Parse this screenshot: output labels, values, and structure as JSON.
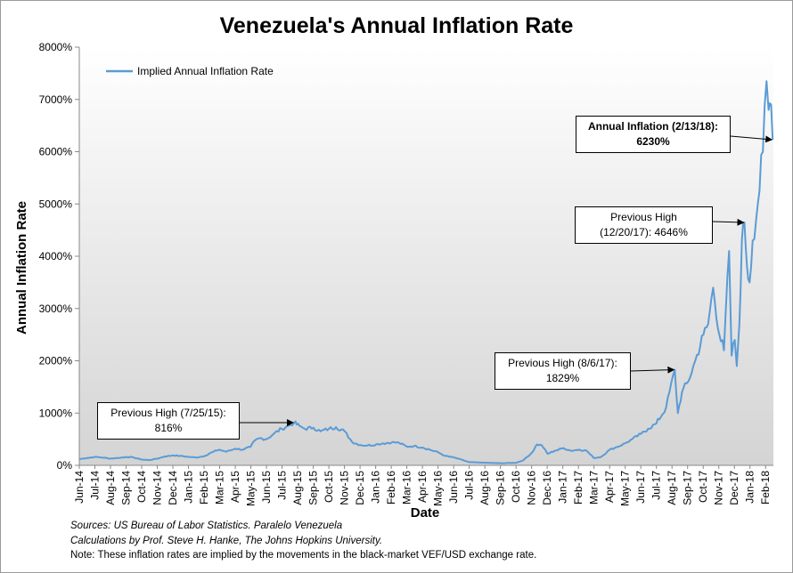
{
  "chart_data": {
    "type": "line",
    "title": "Venezuela's Annual Inflation Rate",
    "xlabel": "Date",
    "ylabel": "Annual Inflation Rate",
    "ylim": [
      0,
      8000
    ],
    "yticks": [
      "0%",
      "1000%",
      "2000%",
      "3000%",
      "4000%",
      "5000%",
      "6000%",
      "7000%",
      "8000%"
    ],
    "xticks": [
      "Jun-14",
      "Jul-14",
      "Aug-14",
      "Sep-14",
      "Oct-14",
      "Nov-14",
      "Dec-14",
      "Jan-15",
      "Feb-15",
      "Mar-15",
      "Apr-15",
      "May-15",
      "Jun-15",
      "Jul-15",
      "Aug-15",
      "Sep-15",
      "Oct-15",
      "Nov-15",
      "Dec-15",
      "Jan-16",
      "Feb-16",
      "Mar-16",
      "Apr-16",
      "May-16",
      "Jun-16",
      "Jul-16",
      "Aug-16",
      "Sep-16",
      "Oct-16",
      "Nov-16",
      "Dec-16",
      "Jan-17",
      "Feb-17",
      "Mar-17",
      "Apr-17",
      "May-17",
      "Jun-17",
      "Jul-17",
      "Aug-17",
      "Sep-17",
      "Oct-17",
      "Nov-17",
      "Dec-17",
      "Jan-18",
      "Feb-18"
    ],
    "grid": false,
    "legend_position": "top-left",
    "series": [
      {
        "name": "Implied Annual Inflation Rate",
        "color": "#5b9bd5",
        "points": [
          [
            "2014-06-01",
            120
          ],
          [
            "2014-06-15",
            140
          ],
          [
            "2014-07-01",
            160
          ],
          [
            "2014-07-15",
            150
          ],
          [
            "2014-08-01",
            130
          ],
          [
            "2014-08-15",
            140
          ],
          [
            "2014-09-01",
            160
          ],
          [
            "2014-09-15",
            150
          ],
          [
            "2014-10-01",
            110
          ],
          [
            "2014-10-15",
            100
          ],
          [
            "2014-11-01",
            130
          ],
          [
            "2014-11-15",
            170
          ],
          [
            "2014-12-01",
            190
          ],
          [
            "2014-12-15",
            180
          ],
          [
            "2015-01-01",
            160
          ],
          [
            "2015-01-15",
            150
          ],
          [
            "2015-02-01",
            180
          ],
          [
            "2015-02-15",
            250
          ],
          [
            "2015-03-01",
            300
          ],
          [
            "2015-03-15",
            260
          ],
          [
            "2015-04-01",
            320
          ],
          [
            "2015-04-15",
            300
          ],
          [
            "2015-05-01",
            350
          ],
          [
            "2015-05-10",
            480
          ],
          [
            "2015-05-20",
            520
          ],
          [
            "2015-06-01",
            500
          ],
          [
            "2015-06-15",
            600
          ],
          [
            "2015-07-01",
            700
          ],
          [
            "2015-07-15",
            760
          ],
          [
            "2015-07-25",
            816
          ],
          [
            "2015-08-05",
            750
          ],
          [
            "2015-08-15",
            700
          ],
          [
            "2015-09-01",
            720
          ],
          [
            "2015-09-15",
            650
          ],
          [
            "2015-10-01",
            700
          ],
          [
            "2015-10-15",
            730
          ],
          [
            "2015-11-01",
            650
          ],
          [
            "2015-11-15",
            450
          ],
          [
            "2015-12-01",
            390
          ],
          [
            "2015-12-15",
            380
          ],
          [
            "2016-01-01",
            400
          ],
          [
            "2016-01-15",
            420
          ],
          [
            "2016-02-01",
            440
          ],
          [
            "2016-02-15",
            430
          ],
          [
            "2016-03-01",
            360
          ],
          [
            "2016-03-15",
            370
          ],
          [
            "2016-04-01",
            340
          ],
          [
            "2016-04-15",
            300
          ],
          [
            "2016-05-01",
            250
          ],
          [
            "2016-05-15",
            180
          ],
          [
            "2016-06-01",
            150
          ],
          [
            "2016-06-15",
            110
          ],
          [
            "2016-07-01",
            60
          ],
          [
            "2016-08-01",
            50
          ],
          [
            "2016-09-01",
            40
          ],
          [
            "2016-10-01",
            50
          ],
          [
            "2016-10-15",
            100
          ],
          [
            "2016-11-01",
            250
          ],
          [
            "2016-11-10",
            400
          ],
          [
            "2016-11-20",
            380
          ],
          [
            "2016-12-01",
            220
          ],
          [
            "2016-12-15",
            280
          ],
          [
            "2017-01-01",
            330
          ],
          [
            "2017-01-15",
            280
          ],
          [
            "2017-02-01",
            300
          ],
          [
            "2017-02-15",
            280
          ],
          [
            "2017-03-01",
            140
          ],
          [
            "2017-03-15",
            160
          ],
          [
            "2017-04-01",
            300
          ],
          [
            "2017-04-15",
            350
          ],
          [
            "2017-05-01",
            420
          ],
          [
            "2017-05-15",
            500
          ],
          [
            "2017-06-01",
            600
          ],
          [
            "2017-06-15",
            700
          ],
          [
            "2017-07-01",
            800
          ],
          [
            "2017-07-20",
            1100
          ],
          [
            "2017-08-06",
            1829
          ],
          [
            "2017-08-12",
            1000
          ],
          [
            "2017-08-20",
            1400
          ],
          [
            "2017-09-01",
            1600
          ],
          [
            "2017-09-15",
            2000
          ],
          [
            "2017-10-01",
            2500
          ],
          [
            "2017-10-10",
            2700
          ],
          [
            "2017-10-20",
            3400
          ],
          [
            "2017-11-01",
            2500
          ],
          [
            "2017-11-10",
            2200
          ],
          [
            "2017-11-20",
            4100
          ],
          [
            "2017-11-25",
            2100
          ],
          [
            "2017-12-01",
            2400
          ],
          [
            "2017-12-05",
            1900
          ],
          [
            "2017-12-10",
            2700
          ],
          [
            "2017-12-15",
            4300
          ],
          [
            "2017-12-20",
            4646
          ],
          [
            "2017-12-25",
            3800
          ],
          [
            "2017-12-30",
            3500
          ],
          [
            "2018-01-05",
            4300
          ],
          [
            "2018-01-15",
            5000
          ],
          [
            "2018-01-25",
            6000
          ],
          [
            "2018-02-01",
            7350
          ],
          [
            "2018-02-05",
            6800
          ],
          [
            "2018-02-10",
            6900
          ],
          [
            "2018-02-13",
            6230
          ]
        ]
      }
    ],
    "annotations": [
      {
        "id": "high-2015",
        "line1": "Previous High (7/25/15):",
        "line2": "816%",
        "date": "2015-07-25",
        "value": 816
      },
      {
        "id": "high-aug17",
        "line1": "Previous High (8/6/17):",
        "line2": "1829%",
        "date": "2017-08-06",
        "value": 1829
      },
      {
        "id": "high-dec17",
        "line1": "Previous High",
        "line2": "(12/20/17): 4646%",
        "date": "2017-12-20",
        "value": 4646
      },
      {
        "id": "current",
        "line1": "Annual Inflation (2/13/18):",
        "line2": "6230%",
        "date": "2018-02-13",
        "value": 6230
      }
    ]
  },
  "footer": {
    "source_line": "Sources: US Bureau of Labor Statistics. Paralelo Venezuela",
    "calc_line": "Calculations by Prof. Steve H. Hanke, The Johns Hopkins University.",
    "note_line": "Note: These inflation rates are implied by the movements in the black-market VEF/USD exchange rate."
  }
}
